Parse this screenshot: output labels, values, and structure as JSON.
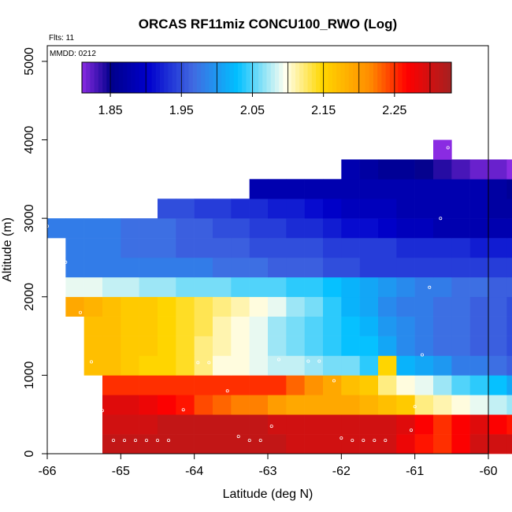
{
  "chart_data": {
    "type": "heatmap",
    "title": "ORCAS RF11miz CONCU100_RWO (Log)",
    "xlabel": "Latitude (deg N)",
    "ylabel": "Altitude (m)",
    "xlim": [
      -66,
      -60
    ],
    "ylim": [
      0,
      5200
    ],
    "xticks": [
      -66,
      -65,
      -64,
      -63,
      -62,
      -61,
      -60
    ],
    "yticks": [
      0,
      1000,
      2000,
      3000,
      4000,
      5000
    ],
    "grid": false,
    "annotations": [
      "Flts: 11",
      "MMDD: 0212"
    ],
    "colorbar": {
      "range": [
        1.81,
        2.33
      ],
      "ticks": [
        1.85,
        1.95,
        2.05,
        2.15,
        2.25
      ],
      "tick_labels": [
        "1.85",
        "1.95",
        "2.05",
        "2.15",
        "2.25"
      ],
      "placement": "top-inside"
    },
    "cell_size": {
      "lat": 0.25,
      "alt": 250
    },
    "rows": [
      {
        "alt": 125,
        "lat_start": -65.25,
        "values": [
          2.31,
          2.31,
          2.31,
          2.31,
          2.31,
          2.31,
          2.31,
          2.31,
          2.31,
          2.31,
          2.3,
          2.3,
          2.3,
          2.3,
          2.3,
          2.3,
          2.28,
          2.26,
          2.25,
          2.27,
          2.3,
          2.3,
          2.3,
          2.28,
          2.23,
          2.25,
          2.15
        ]
      },
      {
        "alt": 375,
        "lat_start": -65.25,
        "values": [
          2.3,
          2.3,
          2.3,
          2.31,
          2.31,
          2.31,
          2.31,
          2.31,
          2.31,
          2.3,
          2.3,
          2.3,
          2.3,
          2.3,
          2.3,
          2.3,
          2.29,
          2.27,
          2.25,
          2.27,
          2.29,
          2.27,
          2.26,
          2.16,
          2.08,
          2.03,
          1.98
        ]
      },
      {
        "alt": 625,
        "lat_start": -65.25,
        "values": [
          2.29,
          2.29,
          2.28,
          2.27,
          2.26,
          2.24,
          2.23,
          2.22,
          2.22,
          2.2,
          2.19,
          2.19,
          2.19,
          2.19,
          2.18,
          2.17,
          2.16,
          2.12,
          2.11,
          2.1,
          2.09,
          2.08,
          2.07,
          2.05,
          2.04,
          2.02
        ]
      },
      {
        "alt": 875,
        "lat_start": -65.25,
        "values": [
          2.25,
          2.25,
          2.25,
          2.25,
          2.25,
          2.25,
          2.25,
          2.25,
          2.25,
          2.25,
          2.23,
          2.21,
          2.19,
          2.17,
          2.16,
          2.12,
          2.1,
          2.09,
          2.07,
          2.05,
          2.04,
          2.03,
          2.01,
          1.98,
          1.97,
          1.96
        ]
      },
      {
        "alt": 1125,
        "lat_start": -65.5,
        "values": [
          2.17,
          2.17,
          2.16,
          2.15,
          2.15,
          2.14,
          2.12,
          2.1,
          2.1,
          2.09,
          2.08,
          2.08,
          2.07,
          2.06,
          2.06,
          2.04,
          2.15,
          2.02,
          2.01,
          2.0,
          1.98,
          1.98,
          1.97,
          1.96,
          1.95,
          1.95,
          1.94
        ]
      },
      {
        "alt": 1375,
        "lat_start": -65.5,
        "values": [
          2.17,
          2.17,
          2.16,
          2.16,
          2.15,
          2.14,
          2.12,
          2.11,
          2.1,
          2.09,
          2.07,
          2.06,
          2.05,
          2.04,
          2.03,
          2.03,
          2.01,
          1.99,
          1.98,
          1.97,
          1.97,
          1.96,
          1.96,
          1.95,
          1.94,
          1.93,
          1.92
        ]
      },
      {
        "alt": 1625,
        "lat_start": -65.5,
        "values": [
          2.17,
          2.17,
          2.16,
          2.16,
          2.15,
          2.14,
          2.13,
          2.11,
          2.1,
          2.09,
          2.07,
          2.06,
          2.05,
          2.04,
          2.03,
          2.02,
          2.0,
          1.99,
          1.98,
          1.97,
          1.97,
          1.96,
          1.96,
          1.95,
          1.94,
          1.93,
          1.92
        ]
      },
      {
        "alt": 1875,
        "lat_start": -65.75,
        "values": [
          2.19,
          2.18,
          2.17,
          2.16,
          2.16,
          2.15,
          2.14,
          2.13,
          2.12,
          2.11,
          2.1,
          2.09,
          2.07,
          2.06,
          2.04,
          2.02,
          2.01,
          1.99,
          1.98,
          1.98,
          1.97,
          1.97,
          1.96,
          1.96,
          1.95,
          1.95,
          1.94,
          1.94
        ]
      },
      {
        "alt": 2125,
        "lat_start": -65.75,
        "values": [
          2.09,
          2.09,
          2.08,
          2.08,
          2.07,
          2.07,
          2.06,
          2.06,
          2.06,
          2.05,
          2.05,
          2.05,
          2.04,
          2.04,
          2.03,
          2.02,
          2.01,
          2.0,
          1.99,
          1.98,
          1.98,
          1.97,
          1.97,
          1.96,
          1.96,
          1.96,
          1.95,
          1.95
        ]
      },
      {
        "alt": 2375,
        "lat_start": -65.75,
        "values": [
          1.98,
          1.98,
          1.98,
          1.98,
          1.98,
          1.98,
          1.98,
          1.98,
          1.97,
          1.97,
          1.97,
          1.96,
          1.96,
          1.96,
          1.95,
          1.95,
          1.94,
          1.94,
          1.94,
          1.94,
          1.94,
          1.94,
          1.94,
          1.94,
          1.94,
          1.94,
          1.94,
          1.94
        ]
      },
      {
        "alt": 2625,
        "lat_start": -65.75,
        "values": [
          1.98,
          1.98,
          1.98,
          1.97,
          1.97,
          1.97,
          1.96,
          1.96,
          1.96,
          1.96,
          1.95,
          1.95,
          1.95,
          1.95,
          1.94,
          1.94,
          1.94,
          1.94,
          1.93,
          1.93,
          1.93,
          1.93,
          1.92,
          1.92,
          1.92,
          1.92,
          1.91,
          1.91
        ]
      },
      {
        "alt": 2875,
        "lat_start": -66.0,
        "values": [
          1.98,
          1.98,
          1.98,
          1.98,
          1.97,
          1.97,
          1.97,
          1.96,
          1.96,
          1.95,
          1.95,
          1.94,
          1.94,
          1.93,
          1.93,
          1.92,
          1.91,
          1.91,
          1.9,
          1.89,
          1.89,
          1.88,
          1.88,
          1.88,
          1.88,
          1.88,
          1.88,
          1.88,
          1.88
        ]
      },
      {
        "alt": 3125,
        "lat_start": -64.5,
        "values": [
          1.95,
          1.95,
          1.94,
          1.94,
          1.93,
          1.93,
          1.92,
          1.92,
          1.91,
          1.9,
          1.89,
          1.89,
          1.89,
          1.88,
          1.88,
          1.88,
          1.88,
          1.88,
          1.87,
          1.87,
          1.86,
          1.86,
          1.86,
          1.85,
          1.84,
          1.83
        ]
      },
      {
        "alt": 3375,
        "lat_start": -63.25,
        "values": [
          1.88,
          1.88,
          1.88,
          1.88,
          1.88,
          1.88,
          1.88,
          1.88,
          1.88,
          1.88,
          1.88,
          1.88,
          1.88,
          1.87,
          1.86,
          1.85,
          1.84,
          1.83,
          1.82,
          1.82
        ]
      },
      {
        "alt": 3625,
        "lat_start": -62.0,
        "values": [
          1.88,
          1.87,
          1.86,
          1.86,
          1.85,
          1.84,
          1.83,
          1.82,
          1.82,
          1.81
        ]
      },
      {
        "alt": 3875,
        "lat_start": -60.75,
        "values": [
          1.81
        ]
      }
    ],
    "points": [
      {
        "lat": -66.0,
        "alt": 2900
      },
      {
        "lat": -65.75,
        "alt": 2440
      },
      {
        "lat": -65.55,
        "alt": 1800
      },
      {
        "lat": -65.4,
        "alt": 1170
      },
      {
        "lat": -65.25,
        "alt": 550
      },
      {
        "lat": -65.1,
        "alt": 170
      },
      {
        "lat": -64.95,
        "alt": 170
      },
      {
        "lat": -64.8,
        "alt": 170
      },
      {
        "lat": -64.65,
        "alt": 170
      },
      {
        "lat": -64.5,
        "alt": 170
      },
      {
        "lat": -64.35,
        "alt": 170
      },
      {
        "lat": -64.15,
        "alt": 560
      },
      {
        "lat": -63.95,
        "alt": 1160
      },
      {
        "lat": -63.8,
        "alt": 1160
      },
      {
        "lat": -63.55,
        "alt": 800
      },
      {
        "lat": -63.4,
        "alt": 220
      },
      {
        "lat": -63.25,
        "alt": 170
      },
      {
        "lat": -63.1,
        "alt": 170
      },
      {
        "lat": -62.95,
        "alt": 350
      },
      {
        "lat": -62.85,
        "alt": 1200
      },
      {
        "lat": -62.45,
        "alt": 1180
      },
      {
        "lat": -62.3,
        "alt": 1180
      },
      {
        "lat": -62.1,
        "alt": 930
      },
      {
        "lat": -62.0,
        "alt": 200
      },
      {
        "lat": -61.85,
        "alt": 170
      },
      {
        "lat": -61.7,
        "alt": 170
      },
      {
        "lat": -61.55,
        "alt": 170
      },
      {
        "lat": -61.4,
        "alt": 170
      },
      {
        "lat": -61.05,
        "alt": 300
      },
      {
        "lat": -61.0,
        "alt": 600
      },
      {
        "lat": -60.9,
        "alt": 1260
      },
      {
        "lat": -60.8,
        "alt": 2120
      },
      {
        "lat": -60.65,
        "alt": 3000
      },
      {
        "lat": -60.55,
        "alt": 3900
      }
    ]
  }
}
